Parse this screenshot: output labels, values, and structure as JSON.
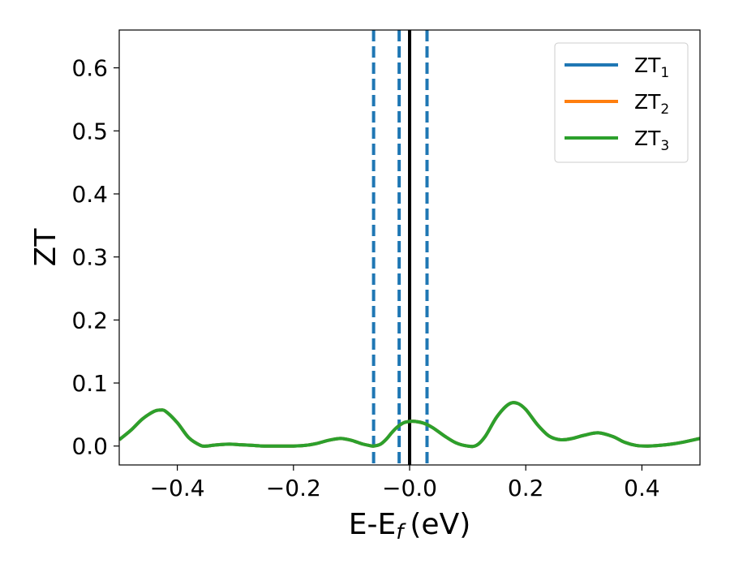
{
  "chart_data": {
    "type": "line",
    "xlabel": "E-E",
    "xlabel_subscript": "f",
    "xlabel_unit": "(eV)",
    "ylabel": "ZT",
    "xlim": [
      -0.5,
      0.5
    ],
    "ylim": [
      -0.03,
      0.66
    ],
    "xticks": [
      -0.4,
      -0.2,
      0.0,
      0.2,
      0.4
    ],
    "xtick_labels": [
      "−0.4",
      "−0.2",
      "−0.0",
      "0.2",
      "0.4"
    ],
    "yticks": [
      0.0,
      0.1,
      0.2,
      0.3,
      0.4,
      0.5,
      0.6
    ],
    "ytick_labels": [
      "0.0",
      "0.1",
      "0.2",
      "0.3",
      "0.4",
      "0.5",
      "0.6"
    ],
    "grid": false,
    "legend_position": "top-right",
    "vlines_dashed": [
      -0.062,
      -0.018,
      0.03
    ],
    "vline_solid": 0.0,
    "vline_dashed_color": "#1f77b4",
    "vline_solid_color": "#000000",
    "x": [
      -0.5,
      -0.48,
      -0.46,
      -0.44,
      -0.43,
      -0.42,
      -0.4,
      -0.38,
      -0.36,
      -0.35,
      -0.34,
      -0.33,
      -0.31,
      -0.29,
      -0.27,
      -0.25,
      -0.22,
      -0.2,
      -0.18,
      -0.16,
      -0.14,
      -0.12,
      -0.11,
      -0.1,
      -0.09,
      -0.08,
      -0.07,
      -0.062,
      -0.05,
      -0.04,
      -0.03,
      -0.02,
      -0.01,
      0.0,
      0.01,
      0.025,
      0.04,
      0.06,
      0.08,
      0.1,
      0.115,
      0.13,
      0.15,
      0.17,
      0.185,
      0.2,
      0.22,
      0.24,
      0.26,
      0.28,
      0.3,
      0.325,
      0.35,
      0.37,
      0.39,
      0.41,
      0.43,
      0.45,
      0.47,
      0.49,
      0.5
    ],
    "series": [
      {
        "name": "ZT",
        "sub": "1",
        "color": "#1f77b4",
        "values": [
          0.01,
          0.025,
          0.043,
          0.055,
          0.057,
          0.055,
          0.037,
          0.013,
          0.001,
          0.0,
          0.001,
          0.002,
          0.003,
          0.002,
          0.001,
          0.0,
          0.0,
          0.0,
          0.001,
          0.004,
          0.009,
          0.012,
          0.011,
          0.009,
          0.006,
          0.003,
          0.001,
          0.0,
          0.003,
          0.011,
          0.022,
          0.031,
          0.037,
          0.039,
          0.039,
          0.036,
          0.029,
          0.016,
          0.005,
          0.0,
          0.001,
          0.015,
          0.046,
          0.066,
          0.068,
          0.058,
          0.034,
          0.016,
          0.01,
          0.012,
          0.017,
          0.021,
          0.015,
          0.006,
          0.001,
          0.0,
          0.001,
          0.003,
          0.006,
          0.01,
          0.012
        ]
      },
      {
        "name": "ZT",
        "sub": "2",
        "color": "#ff7f0e",
        "values": [
          0.01,
          0.025,
          0.043,
          0.055,
          0.057,
          0.055,
          0.037,
          0.013,
          0.001,
          0.0,
          0.001,
          0.002,
          0.003,
          0.002,
          0.001,
          0.0,
          0.0,
          0.0,
          0.001,
          0.004,
          0.009,
          0.012,
          0.011,
          0.009,
          0.006,
          0.003,
          0.001,
          0.0,
          0.003,
          0.011,
          0.022,
          0.031,
          0.037,
          0.039,
          0.039,
          0.036,
          0.029,
          0.016,
          0.005,
          0.0,
          0.001,
          0.015,
          0.046,
          0.066,
          0.068,
          0.058,
          0.034,
          0.016,
          0.01,
          0.012,
          0.017,
          0.021,
          0.015,
          0.006,
          0.001,
          0.0,
          0.001,
          0.003,
          0.006,
          0.01,
          0.012
        ]
      },
      {
        "name": "ZT",
        "sub": "3",
        "color": "#2ca02c",
        "values": [
          0.01,
          0.025,
          0.043,
          0.055,
          0.057,
          0.055,
          0.037,
          0.013,
          0.001,
          0.0,
          0.001,
          0.002,
          0.003,
          0.002,
          0.001,
          0.0,
          0.0,
          0.0,
          0.001,
          0.004,
          0.009,
          0.012,
          0.011,
          0.009,
          0.006,
          0.003,
          0.001,
          0.0,
          0.003,
          0.011,
          0.022,
          0.031,
          0.037,
          0.039,
          0.039,
          0.036,
          0.029,
          0.016,
          0.005,
          0.0,
          0.001,
          0.015,
          0.046,
          0.066,
          0.068,
          0.058,
          0.034,
          0.016,
          0.01,
          0.012,
          0.017,
          0.021,
          0.015,
          0.006,
          0.001,
          0.0,
          0.001,
          0.003,
          0.006,
          0.01,
          0.012
        ]
      }
    ]
  }
}
